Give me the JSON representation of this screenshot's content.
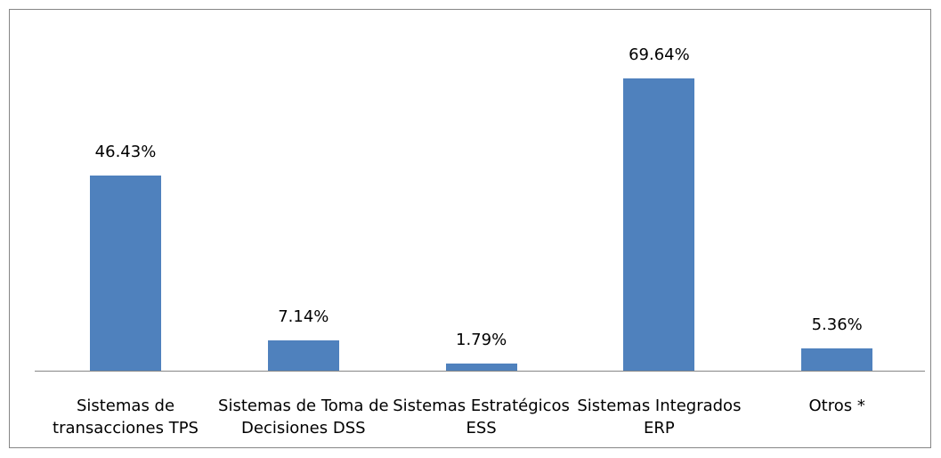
{
  "chart_data": {
    "type": "bar",
    "categories": [
      "Sistemas de transacciones TPS",
      "Sistemas de Toma de Decisiones DSS",
      "Sistemas Estratégicos ESS",
      "Sistemas Integrados ERP",
      "Otros *"
    ],
    "values": [
      46.43,
      7.14,
      1.79,
      69.64,
      5.36
    ],
    "value_labels": [
      "46.43%",
      "7.14%",
      "1.79%",
      "69.64%",
      "5.36%"
    ],
    "color": "#4f81bd"
  }
}
